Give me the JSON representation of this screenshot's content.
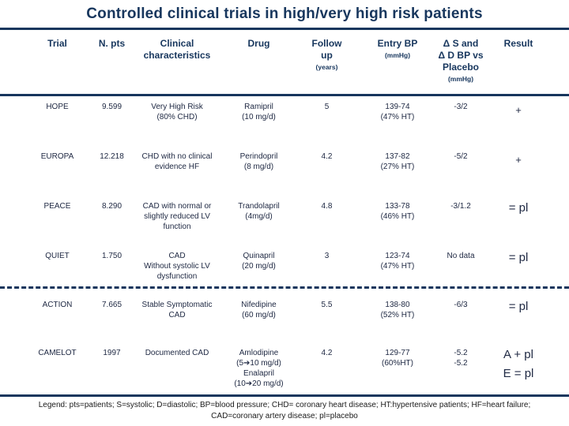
{
  "slide": {
    "title": "Controlled clinical trials in high/very high risk patients"
  },
  "colors": {
    "navy_accent": "#17365D",
    "data_text": "#202A44",
    "legend_text": "#1A1A1A",
    "background": "#FFFFFF"
  },
  "table": {
    "headers": {
      "trial": "Trial",
      "n_pts": "N. pts",
      "clinical": "Clinical\ncharacteristics",
      "drug": "Drug",
      "follow_up": "Follow\nup",
      "follow_up_unit": "(years)",
      "entry_bp": "Entry BP",
      "entry_bp_unit": "(mmHg)",
      "delta": "Δ S and\nΔ D BP vs\nPlacebo",
      "delta_unit": "(mmHg)",
      "result": "Result"
    },
    "rows": [
      {
        "trial": "HOPE",
        "n_pts": "9.599",
        "clinical": "Very High Risk\n(80% CHD)",
        "drug": "Ramipril\n(10 mg/d)",
        "follow_up": "5",
        "entry_bp": "139-74\n(47% HT)",
        "delta": "-3/2",
        "result": "+"
      },
      {
        "trial": "EUROPA",
        "n_pts": "12.218",
        "clinical": "CHD with no clinical\nevidence HF",
        "drug": "Perindopril\n(8 mg/d)",
        "follow_up": "4.2",
        "entry_bp": "137-82\n(27% HT)",
        "delta": "-5/2",
        "result": "+"
      },
      {
        "trial": "PEACE",
        "n_pts": "8.290",
        "clinical": "CAD with normal or\nslightly reduced LV\nfunction",
        "drug": "Trandolapril\n(4mg/d)",
        "follow_up": "4.8",
        "entry_bp": "133-78\n(46% HT)",
        "delta": "-3/1.2",
        "result": "= pl"
      },
      {
        "trial": "QUIET",
        "n_pts": "1.750",
        "clinical": "CAD\nWithout systolic LV\ndysfunction",
        "drug": "Quinapril\n(20 mg/d)",
        "follow_up": "3",
        "entry_bp": "123-74\n(47% HT)",
        "delta": "No data",
        "result": "= pl"
      },
      {
        "trial": "ACTION",
        "n_pts": "7.665",
        "clinical": "Stable Symptomatic\nCAD",
        "drug": "Nifedipine\n(60 mg/d)",
        "follow_up": "5.5",
        "entry_bp": "138-80\n(52% HT)",
        "delta": "-6/3",
        "result": "= pl"
      },
      {
        "trial": "CAMELOT",
        "n_pts": "1997",
        "clinical": "Documented CAD",
        "drug": "Amlodipine\n(5➔10 mg/d)\nEnalapril\n(10➔20 mg/d)",
        "follow_up": "4.2",
        "entry_bp": "129-77\n(60%HT)",
        "delta": "-5.2\n-5.2",
        "result": "A + pl\nE = pl"
      }
    ]
  },
  "legend": "Legend: pts=patients; S=systolic; D=diastolic; BP=blood pressure; CHD= coronary heart disease; HT:hypertensive patients; HF=heart failure;\nCAD=coronary artery disease; pl=placebo"
}
